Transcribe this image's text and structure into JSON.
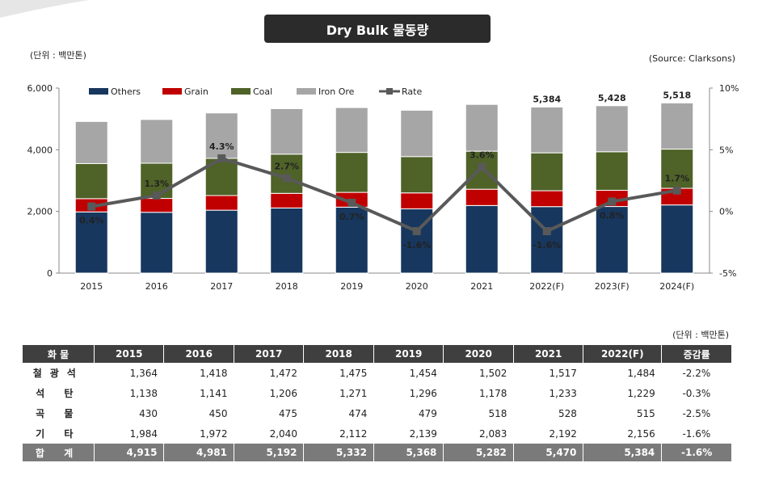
{
  "title": "Dry Bulk 물동량",
  "unit": "(단위 : 백만톤)",
  "source": "(Source: Clarksons)",
  "chart_data": {
    "type": "bar",
    "stacked": true,
    "categories": [
      "2015",
      "2016",
      "2017",
      "2018",
      "2019",
      "2020",
      "2021",
      "2022(F)",
      "2023(F)",
      "2024(F)"
    ],
    "series": [
      {
        "name": "Others",
        "color": "#17375e",
        "values": [
          1984,
          1972,
          2040,
          2112,
          2139,
          2083,
          2192,
          2156,
          2160,
          2210
        ]
      },
      {
        "name": "Grain",
        "color": "#c00000",
        "values": [
          430,
          450,
          475,
          474,
          479,
          518,
          528,
          515,
          525,
          540
        ]
      },
      {
        "name": "Coal",
        "color": "#4f6228",
        "values": [
          1138,
          1141,
          1206,
          1271,
          1296,
          1178,
          1233,
          1229,
          1250,
          1270
        ]
      },
      {
        "name": "Iron Ore",
        "color": "#a6a6a6",
        "values": [
          1364,
          1418,
          1472,
          1475,
          1454,
          1502,
          1517,
          1484,
          1493,
          1498
        ]
      }
    ],
    "rate": {
      "name": "Rate",
      "color": "#595959",
      "values": [
        0.4,
        1.3,
        4.3,
        2.7,
        0.7,
        -1.6,
        3.6,
        -1.6,
        0.8,
        1.7
      ],
      "labels": [
        "0.4%",
        "1.3%",
        "4.3%",
        "2.7%",
        "0.7%",
        "-1.6%",
        "3.6%",
        "-1.6%",
        "0.8%",
        "1.7%"
      ]
    },
    "total_labels": [
      {
        "index": 7,
        "text": "5,384"
      },
      {
        "index": 8,
        "text": "5,428"
      },
      {
        "index": 9,
        "text": "5,518"
      }
    ],
    "ylim": [
      0,
      6000
    ],
    "yticks": [
      0,
      2000,
      4000,
      6000
    ],
    "ytick_labels": [
      "0",
      "2,000",
      "4,000",
      "6,000"
    ],
    "y2lim": [
      -5,
      10
    ],
    "y2ticks": [
      -5,
      0,
      5,
      10
    ],
    "y2tick_labels": [
      "-5%",
      "0%",
      "5%",
      "10%"
    ],
    "legend": [
      "Others",
      "Grain",
      "Coal",
      "Iron Ore",
      "Rate"
    ],
    "legend_position": "top"
  },
  "table": {
    "unit": "(단위 : 백만톤)",
    "headers": [
      "화 물",
      "2015",
      "2016",
      "2017",
      "2018",
      "2019",
      "2020",
      "2021",
      "2022(F)",
      "증감률"
    ],
    "rows": [
      [
        "철광석",
        "1,364",
        "1,418",
        "1,472",
        "1,475",
        "1,454",
        "1,502",
        "1,517",
        "1,484",
        "-2.2%"
      ],
      [
        "석 탄",
        "1,138",
        "1,141",
        "1,206",
        "1,271",
        "1,296",
        "1,178",
        "1,233",
        "1,229",
        "-0.3%"
      ],
      [
        "곡 물",
        "430",
        "450",
        "475",
        "474",
        "479",
        "518",
        "528",
        "515",
        "-2.5%"
      ],
      [
        "기 타",
        "1,984",
        "1,972",
        "2,040",
        "2,112",
        "2,139",
        "2,083",
        "2,192",
        "2,156",
        "-1.6%"
      ]
    ],
    "total": [
      "합 계",
      "4,915",
      "4,981",
      "5,192",
      "5,332",
      "5,368",
      "5,282",
      "5,470",
      "5,384",
      "-1.6%"
    ]
  }
}
